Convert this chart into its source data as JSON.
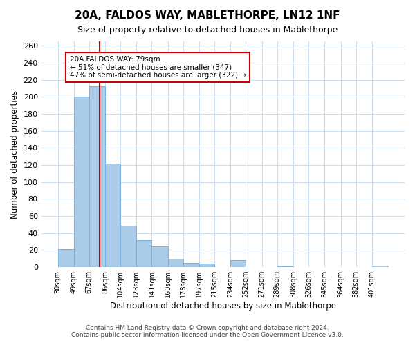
{
  "title": "20A, FALDOS WAY, MABLETHORPE, LN12 1NF",
  "subtitle": "Size of property relative to detached houses in Mablethorpe",
  "xlabel": "Distribution of detached houses by size in Mablethorpe",
  "ylabel": "Number of detached properties",
  "bar_labels": [
    "30sqm",
    "49sqm",
    "67sqm",
    "86sqm",
    "104sqm",
    "123sqm",
    "141sqm",
    "160sqm",
    "178sqm",
    "197sqm",
    "215sqm",
    "234sqm",
    "252sqm",
    "271sqm",
    "289sqm",
    "308sqm",
    "326sqm",
    "345sqm",
    "364sqm",
    "382sqm",
    "401sqm"
  ],
  "bar_values": [
    21,
    200,
    212,
    122,
    49,
    32,
    24,
    10,
    5,
    4,
    0,
    8,
    0,
    0,
    1,
    0,
    0,
    0,
    0,
    0,
    2
  ],
  "bar_color": "#aacce8",
  "bar_edge_color": "#7ab0d8",
  "property_line_x": 79,
  "property_line_label": "20A FALDOS WAY: 79sqm",
  "smaller_pct": 51,
  "smaller_count": 347,
  "larger_pct": 47,
  "larger_count": 322,
  "annotation_box_color": "#ffffff",
  "annotation_box_edge": "#cc0000",
  "line_color": "#cc0000",
  "ylim": [
    0,
    265
  ],
  "yticks": [
    0,
    20,
    40,
    60,
    80,
    100,
    120,
    140,
    160,
    180,
    200,
    220,
    240,
    260
  ],
  "footer_line1": "Contains HM Land Registry data © Crown copyright and database right 2024.",
  "footer_line2": "Contains public sector information licensed under the Open Government Licence v3.0.",
  "background_color": "#ffffff",
  "grid_color": "#ccddee"
}
